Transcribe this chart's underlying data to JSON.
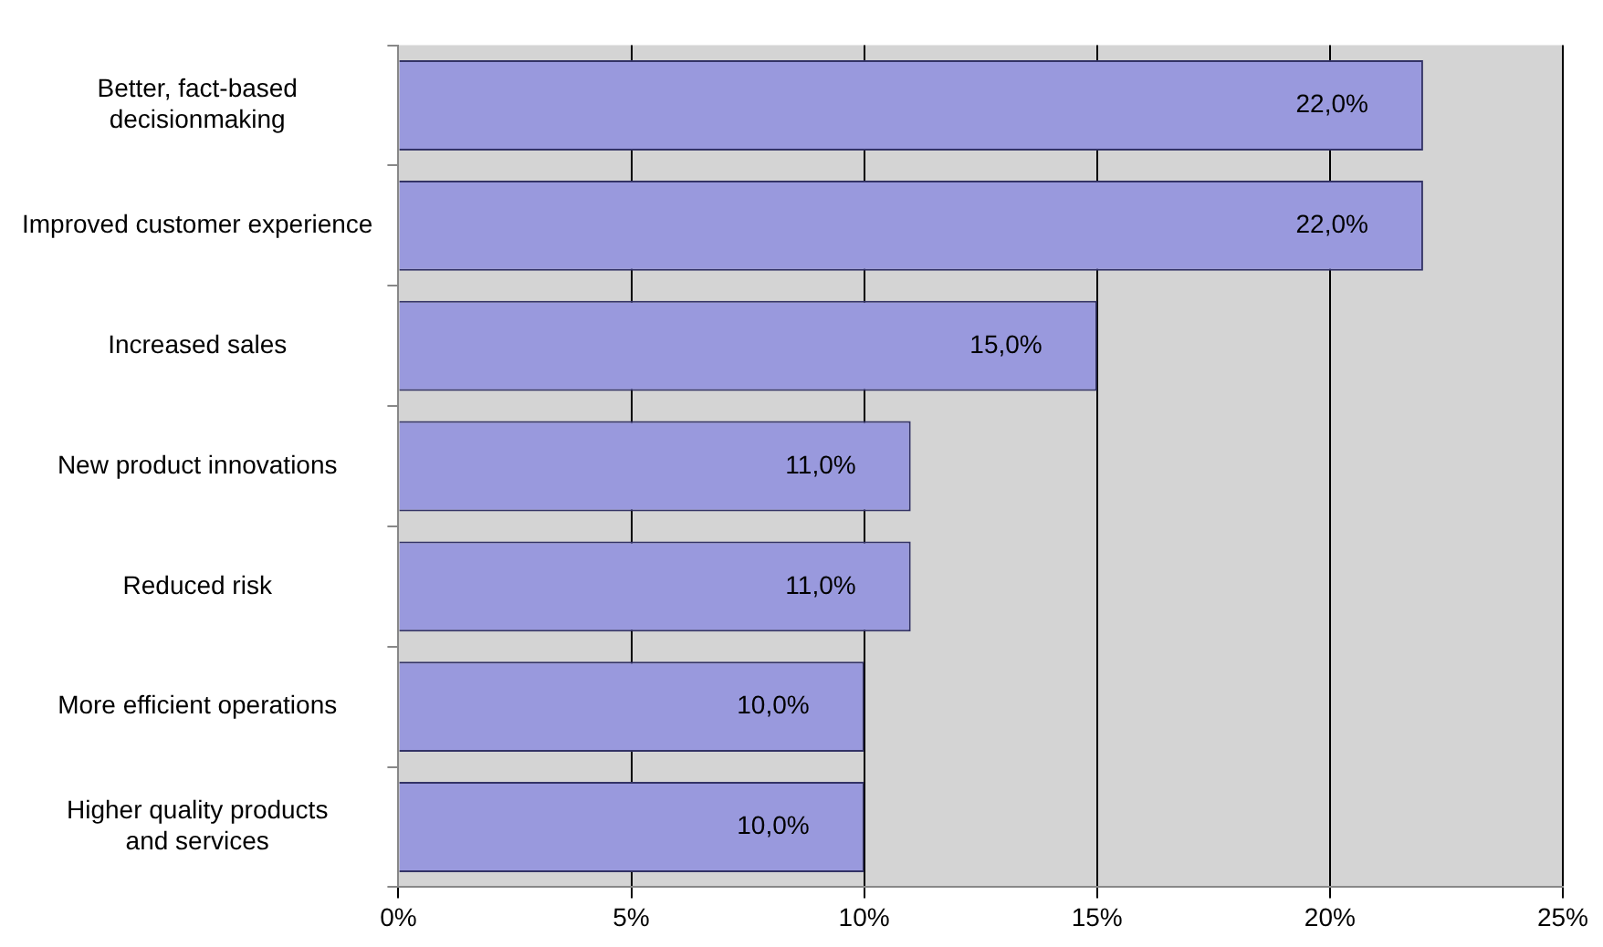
{
  "chart_data": {
    "type": "bar",
    "orientation": "horizontal",
    "categories": [
      "Better, fact-based decisionmaking",
      "Improved customer experience",
      "Increased sales",
      "New product innovations",
      "Reduced risk",
      "More efficient operations",
      "Higher quality products and services"
    ],
    "values": [
      22,
      22,
      15,
      11,
      11,
      10,
      10
    ],
    "value_labels": [
      "22,0%",
      "22,0%",
      "15,0%",
      "11,0%",
      "11,0%",
      "10,0%",
      "10,0%"
    ],
    "color": "#9999dd",
    "xlim": [
      0,
      25
    ],
    "xticks": [
      {
        "value": 0,
        "label": "0%"
      },
      {
        "value": 5,
        "label": "5%"
      },
      {
        "value": 10,
        "label": "10%"
      },
      {
        "value": 15,
        "label": "15%"
      },
      {
        "value": 20,
        "label": "20%"
      },
      {
        "value": 25,
        "label": "25%"
      }
    ],
    "grid": "x",
    "legend": false
  }
}
